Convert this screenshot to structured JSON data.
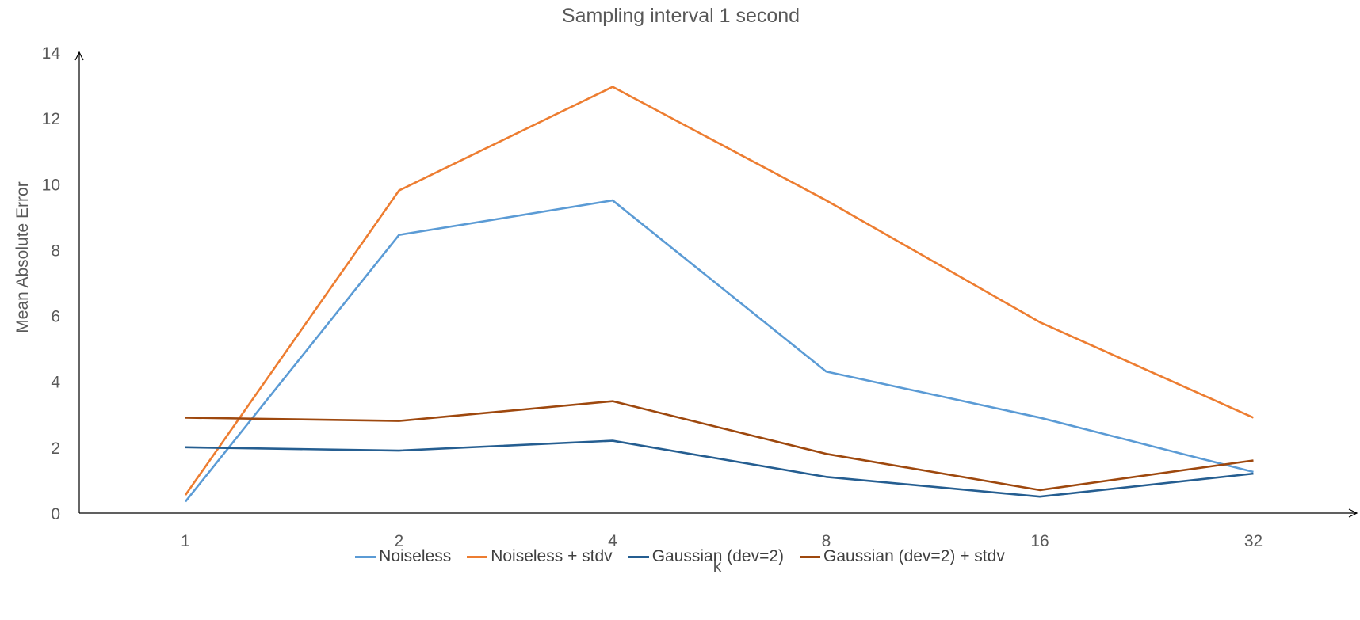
{
  "chart_data": {
    "type": "line",
    "title": "Sampling interval 1 second",
    "xlabel": "k",
    "ylabel": "Mean Absolute Error",
    "categories": [
      "1",
      "2",
      "4",
      "8",
      "16",
      "32"
    ],
    "ylim": [
      0,
      14
    ],
    "yticks": [
      "0",
      "2",
      "4",
      "6",
      "8",
      "10",
      "12",
      "14"
    ],
    "grid": false,
    "legend_position": "bottom",
    "series": [
      {
        "name": "Noiseless",
        "color": "#5B9BD5",
        "values": [
          0.35,
          8.45,
          9.5,
          4.3,
          2.9,
          1.25
        ]
      },
      {
        "name": "Noiseless + stdv",
        "color": "#ED7D31",
        "values": [
          0.55,
          9.8,
          12.95,
          9.5,
          5.8,
          2.9
        ]
      },
      {
        "name": "Gaussian (dev=2)",
        "color": "#255E91",
        "values": [
          2.0,
          1.9,
          2.2,
          1.1,
          0.5,
          1.2
        ]
      },
      {
        "name": "Gaussian (dev=2) + stdv",
        "color": "#9E480E",
        "values": [
          2.9,
          2.8,
          3.4,
          1.8,
          0.7,
          1.6
        ]
      }
    ]
  }
}
